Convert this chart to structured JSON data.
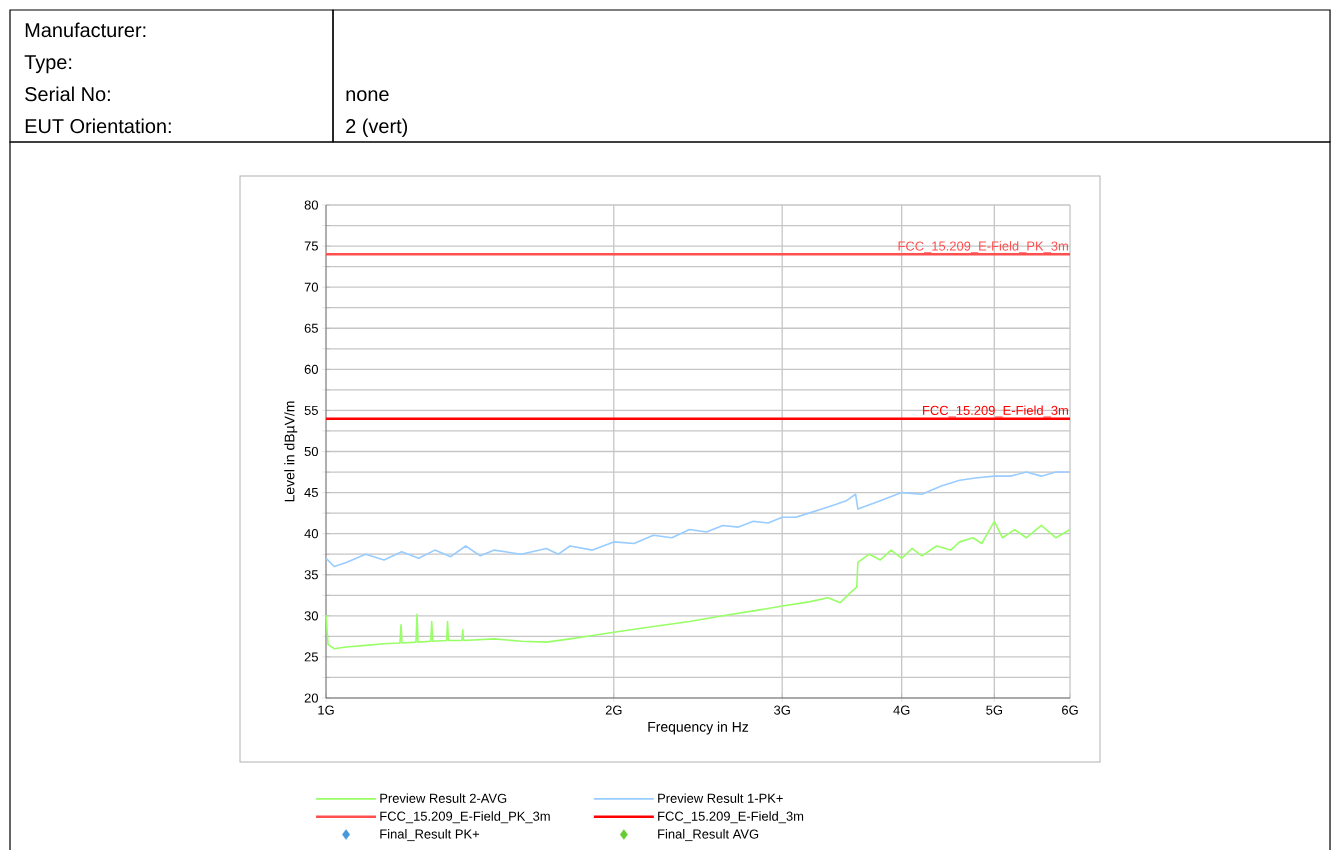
{
  "chart_data": {
    "type": "line",
    "xlabel": "Frequency in Hz",
    "ylabel": "Level in dBµV/m",
    "annotations": [
      "Manufacturer:",
      "Type:",
      "Serial No:",
      "none",
      "EUT Orientation:",
      "2 (vert)"
    ],
    "log": "x",
    "grid": true,
    "legend": "bottom",
    "xlim": [
      1,
      6
    ],
    "xticks": [
      {
        "value": 1,
        "label": "1G"
      },
      {
        "value": 2,
        "label": "2G"
      },
      {
        "value": 3,
        "label": "3G"
      },
      {
        "value": 4,
        "label": "4G"
      },
      {
        "value": 5,
        "label": "5G"
      },
      {
        "value": 6,
        "label": "6G"
      }
    ],
    "ylim": [
      20,
      80
    ],
    "yticks": [
      20,
      {
        "value": 22.5,
        "label": null
      },
      25,
      {
        "value": 27.5,
        "label": null
      },
      30,
      {
        "value": 32.5,
        "label": null
      },
      35,
      {
        "value": 37.5,
        "label": null
      },
      40,
      {
        "value": 42.5,
        "label": null
      },
      45,
      {
        "value": 47.5,
        "label": null
      },
      50,
      {
        "value": 52.5,
        "label": null
      },
      55,
      {
        "value": 57.5,
        "label": null
      },
      60,
      {
        "value": 62.5,
        "label": null
      },
      65,
      {
        "value": 67.5,
        "label": null
      },
      70,
      {
        "value": 72.5,
        "label": null
      },
      75,
      {
        "value": 77.5,
        "label": null
      },
      80
    ],
    "ref_lines": [
      {
        "axis": "y",
        "value": 74,
        "label": "FCC_15.209_E-Field_PK_3m",
        "color": "#ff5050"
      },
      {
        "axis": "y",
        "value": 54,
        "label": "FCC_15.209_E-Field_3m",
        "color": "#ff0000"
      }
    ],
    "series": [
      {
        "name": "Preview Result 2-AVG",
        "color": "#99ff66",
        "x": [
          1.0,
          1.005,
          1.02,
          1.05,
          1.1,
          1.15,
          1.195,
          1.198,
          1.201,
          1.242,
          1.245,
          1.248,
          1.287,
          1.29,
          1.293,
          1.337,
          1.34,
          1.343,
          1.387,
          1.39,
          1.393,
          1.5,
          1.6,
          1.7,
          1.8,
          1.9,
          2.0,
          2.2,
          2.4,
          2.6,
          2.8,
          3.0,
          3.2,
          3.35,
          3.45,
          3.55,
          3.59,
          3.6,
          3.7,
          3.8,
          3.9,
          4.0,
          4.1,
          4.2,
          4.35,
          4.5,
          4.6,
          4.75,
          4.85,
          5.0,
          5.1,
          5.25,
          5.4,
          5.6,
          5.8,
          6.0
        ],
        "values": [
          30.1,
          26.5,
          26.0,
          26.2,
          26.4,
          26.6,
          26.7,
          28.9,
          26.7,
          26.8,
          30.2,
          26.8,
          26.9,
          29.3,
          26.9,
          27.0,
          29.3,
          27.0,
          27.0,
          28.3,
          27.0,
          27.2,
          26.9,
          26.8,
          27.2,
          27.6,
          28.0,
          28.7,
          29.3,
          30.0,
          30.6,
          31.2,
          31.7,
          32.2,
          31.6,
          33.0,
          33.5,
          36.5,
          37.5,
          36.8,
          38.0,
          37.0,
          38.2,
          37.3,
          38.5,
          38.0,
          39.0,
          39.5,
          38.8,
          41.5,
          39.5,
          40.5,
          39.5,
          41.0,
          39.5,
          40.5
        ]
      },
      {
        "name": "Preview Result 1-PK+",
        "color": "#99ccff",
        "x": [
          1.0,
          1.02,
          1.05,
          1.1,
          1.15,
          1.2,
          1.25,
          1.3,
          1.35,
          1.4,
          1.45,
          1.5,
          1.6,
          1.7,
          1.75,
          1.8,
          1.9,
          2.0,
          2.1,
          2.2,
          2.3,
          2.4,
          2.5,
          2.6,
          2.7,
          2.8,
          2.9,
          3.0,
          3.1,
          3.2,
          3.3,
          3.4,
          3.5,
          3.58,
          3.6,
          3.8,
          4.0,
          4.2,
          4.4,
          4.6,
          4.8,
          5.0,
          5.2,
          5.4,
          5.6,
          5.8,
          6.0
        ],
        "values": [
          37.0,
          36.0,
          36.5,
          37.5,
          36.8,
          37.8,
          37.0,
          38.0,
          37.2,
          38.5,
          37.3,
          38.0,
          37.5,
          38.2,
          37.5,
          38.5,
          38.0,
          39.0,
          38.8,
          39.8,
          39.5,
          40.5,
          40.2,
          41.0,
          40.8,
          41.5,
          41.3,
          42.0,
          42.0,
          42.5,
          43.0,
          43.5,
          44.0,
          44.8,
          43.0,
          44.0,
          45.0,
          44.8,
          45.8,
          46.5,
          46.8,
          47.0,
          47.0,
          47.5,
          47.0,
          47.5,
          47.5
        ]
      },
      {
        "type": "scatter",
        "marker": "diamond",
        "name": "Final_Result PK+",
        "color": "#4499dd"
      },
      {
        "type": "scatter",
        "marker": "diamond",
        "name": "Final_Result AVG",
        "color": "#66cc33"
      }
    ]
  }
}
